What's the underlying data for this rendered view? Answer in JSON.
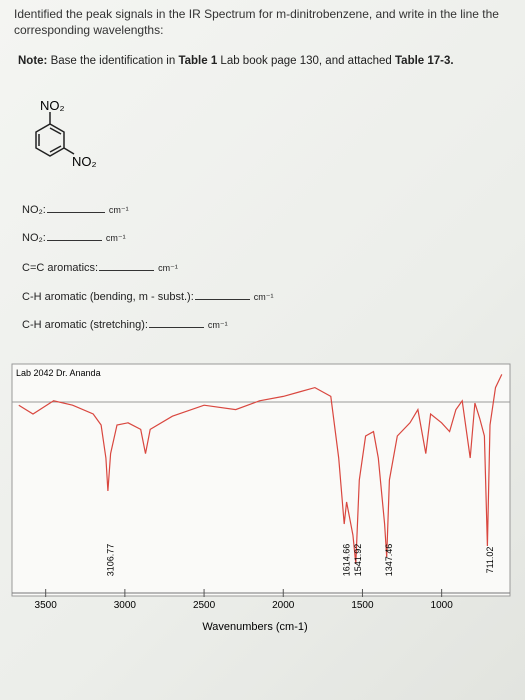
{
  "header": {
    "instruction": "Identified the peak signals in the IR Spectrum for m-dinitrobenzene, and write in the line the corresponding wavelengths:",
    "note": [
      {
        "text": "Note:",
        "bold": true
      },
      {
        "text": " Base the identification in ",
        "bold": false
      },
      {
        "text": "Table 1",
        "bold": true
      },
      {
        "text": " Lab book page 130, and attached ",
        "bold": false
      },
      {
        "text": "Table 17-3.",
        "bold": true
      }
    ]
  },
  "structure": {
    "top_group": "NO₂",
    "side_group": "NO₂"
  },
  "fields": [
    {
      "label": "NO₂:",
      "unit": "cm⁻¹"
    },
    {
      "label": "NO₂:",
      "unit": "cm⁻¹"
    },
    {
      "label": "C=C aromatics:",
      "unit": "cm⁻¹"
    },
    {
      "label": "C-H aromatic (bending, m - subst.):",
      "unit": "cm⁻¹"
    },
    {
      "label": "C-H aromatic (stretching):",
      "unit": "cm⁻¹"
    }
  ],
  "spectrum": {
    "type": "line",
    "caption": "Lab 2042 Dr. Ananda",
    "x_label": "Wavenumbers (cm-1)",
    "color": "#d9473f",
    "xlim": [
      3700,
      600
    ],
    "ylim": [
      0,
      100
    ],
    "xticks": [
      3500,
      3000,
      2500,
      2000,
      1500,
      1000
    ],
    "x": [
      3670,
      3580,
      3450,
      3330,
      3200,
      3150,
      3120,
      3107,
      3090,
      3050,
      2980,
      2900,
      2870,
      2840,
      2700,
      2500,
      2300,
      2150,
      2000,
      1900,
      1800,
      1700,
      1650,
      1615,
      1600,
      1560,
      1542,
      1520,
      1480,
      1430,
      1400,
      1360,
      1347,
      1330,
      1280,
      1200,
      1150,
      1100,
      1070,
      1000,
      950,
      910,
      870,
      820,
      790,
      760,
      730,
      711,
      695,
      660,
      620
    ],
    "values": [
      84,
      80,
      86,
      84,
      80,
      75,
      60,
      45,
      62,
      75,
      76,
      73,
      62,
      73,
      79,
      84,
      82,
      86,
      88,
      90,
      92,
      88,
      60,
      30,
      40,
      25,
      12,
      50,
      70,
      72,
      60,
      30,
      15,
      50,
      70,
      76,
      82,
      62,
      80,
      76,
      72,
      82,
      86,
      60,
      85,
      78,
      70,
      20,
      75,
      92,
      98
    ],
    "peaks": [
      3106.77,
      1614.66,
      1541.92,
      1347.46,
      711.02
    ]
  }
}
